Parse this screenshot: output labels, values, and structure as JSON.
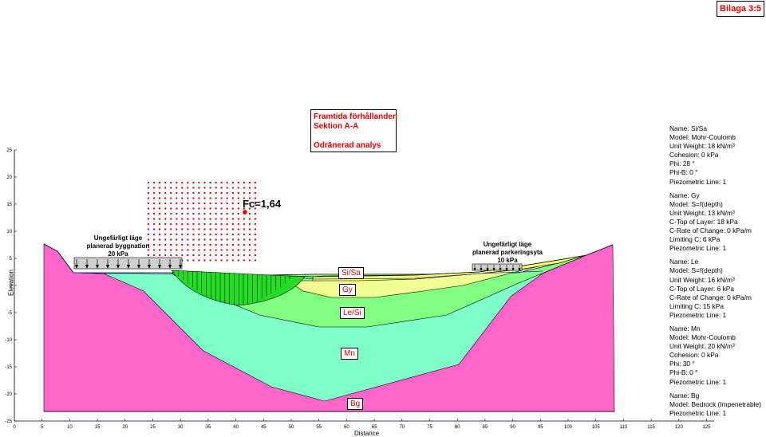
{
  "badge": "Bilaga 3:5",
  "title": {
    "line1": "Framtida förhållanden",
    "line2": "Sektion A-A",
    "line3": "Odränerad analys"
  },
  "factor_label": "Fc=1,64",
  "annotations": {
    "left_load": [
      "Ungefärligt läge",
      "planerad byggnation",
      "20 kPa"
    ],
    "right_load": [
      "Ungefärligt läge",
      "planerad parkeringsyta",
      "10 kPa"
    ]
  },
  "soil_labels": {
    "si_sa": "Si/Sa",
    "gy": "Gy",
    "le_si": "Le/Si",
    "mn": "Mn",
    "bg": "Bg"
  },
  "colors": {
    "bedrock": "#ff66cc",
    "mn": "#7fffc9",
    "le": "#80ff80",
    "gy": "#f0ff90",
    "si_sa": "#ffff66",
    "slip_surface": "#22dd22",
    "grid_dots": "#d40000"
  },
  "legend": [
    [
      "Name: Si/Sa",
      "Model: Mohr-Coulomb",
      "Unit Weight: 18 kN/m³",
      "Cohesion: 0 kPa",
      "Phi: 28 °",
      "Phi-B: 0 °",
      "Piezometric Line: 1"
    ],
    [
      "Name: Gy",
      "Model: S=f(depth)",
      "Unit Weight: 13 kN/m³",
      "C-Top of Layer: 18 kPa",
      "C-Rate of Change: 0 kPa/m",
      "Limiting C: 6 kPa",
      "Piezometric Line: 1"
    ],
    [
      "Name: Le",
      "Model: S=f(depth)",
      "Unit Weight: 16 kN/m³",
      "C-Top of Layer: 6 kPa",
      "C-Rate of Change: 0 kPa/m",
      "Limiting C: 15 kPa",
      "Piezometric Line: 1"
    ],
    [
      "Name: Mn",
      "Model: Mohr-Coulomb",
      "Unit Weight: 20 kN/m³",
      "Cohesion: 0 kPa",
      "Phi: 30 °",
      "Phi-B: 0 °",
      "Piezometric Line: 1"
    ],
    [
      "Name: Bg",
      "Model: Bedrock (Impenetrable)",
      "Piezometric Line: 1"
    ]
  ],
  "axes": {
    "xlabel": "Distance",
    "ylabel": "Elevation",
    "x_ticks": [
      0,
      5,
      10,
      15,
      20,
      25,
      30,
      35,
      40,
      45,
      50,
      55,
      60,
      65,
      70,
      75,
      80,
      85,
      90,
      95,
      100,
      105,
      110,
      115,
      120,
      125
    ],
    "y_ticks": [
      -25,
      -20,
      -15,
      -10,
      -5,
      0,
      5,
      10,
      15,
      20,
      25
    ],
    "xlim": [
      0,
      125
    ],
    "ylim": [
      -25,
      25
    ]
  }
}
